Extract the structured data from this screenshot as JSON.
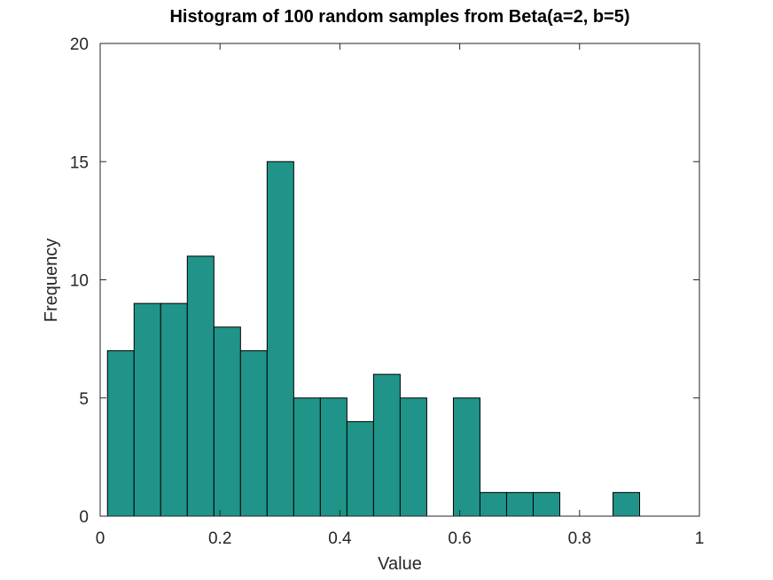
{
  "chart_data": {
    "type": "bar",
    "title": "Histogram of 100 random samples from Beta(a=2, b=5)",
    "xlabel": "Value",
    "ylabel": "Frequency",
    "xlim": [
      0,
      1
    ],
    "ylim": [
      0,
      20
    ],
    "xticks": [
      0,
      0.2,
      0.4,
      0.6,
      0.8,
      1
    ],
    "xtick_labels": [
      "0",
      "0.2",
      "0.4",
      "0.6",
      "0.8",
      "1"
    ],
    "yticks": [
      0,
      5,
      10,
      15,
      20
    ],
    "ytick_labels": [
      "0",
      "5",
      "10",
      "15",
      "20"
    ],
    "bin_edges": [
      0.0122,
      0.0566,
      0.101,
      0.1454,
      0.1898,
      0.2342,
      0.2786,
      0.323,
      0.3674,
      0.4118,
      0.4562,
      0.5006,
      0.545,
      0.5894,
      0.6338,
      0.6782,
      0.7226,
      0.767,
      0.8114,
      0.8558,
      0.9002
    ],
    "values": [
      7,
      9,
      9,
      11,
      8,
      7,
      15,
      5,
      5,
      4,
      6,
      5,
      0,
      5,
      1,
      1,
      1,
      0,
      0,
      1
    ],
    "bar_color": "#209489",
    "edge_color": "#000000",
    "grid": false,
    "box": true
  }
}
